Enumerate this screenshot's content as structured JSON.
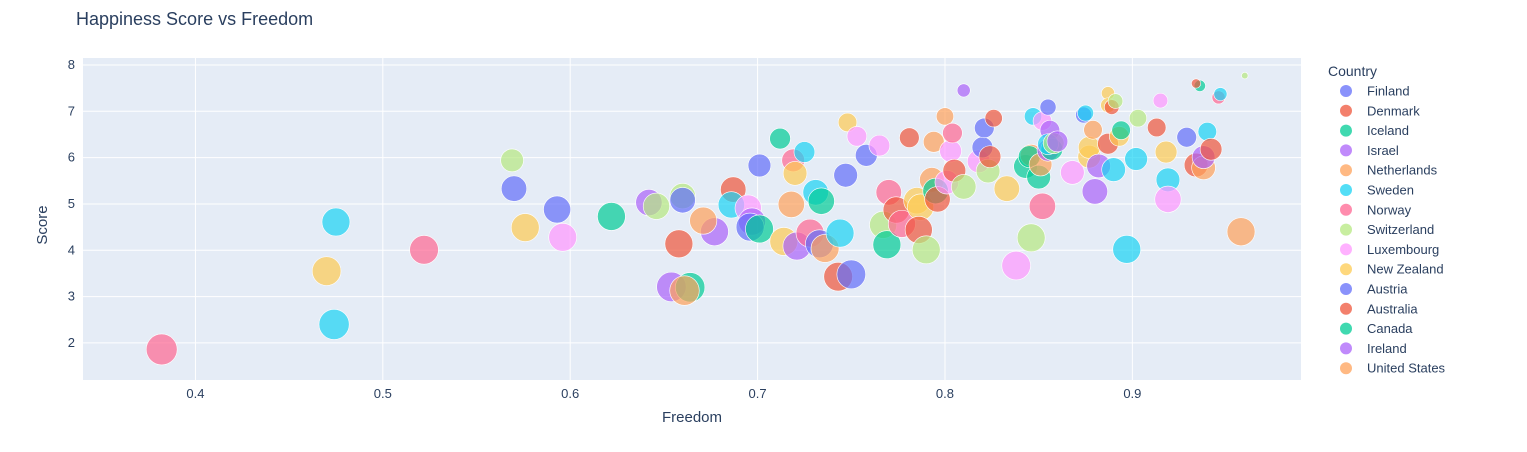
{
  "chart_data": {
    "type": "scatter",
    "title": "Happiness Score vs Freedom",
    "xlabel": "Freedom",
    "ylabel": "Score",
    "xlim": [
      0.34,
      0.99
    ],
    "ylim": [
      1.2,
      8.15
    ],
    "x_ticks": [
      0.4,
      0.5,
      0.6,
      0.7,
      0.8,
      0.9
    ],
    "x_tick_labels": [
      "0.4",
      "0.5",
      "0.6",
      "0.7",
      "0.8",
      "0.9"
    ],
    "y_ticks": [
      2,
      3,
      4,
      5,
      6,
      7,
      8
    ],
    "y_tick_labels": [
      "2",
      "3",
      "4",
      "5",
      "6",
      "7",
      "8"
    ],
    "grid": true,
    "legend_title": "Country",
    "legend_position": "right",
    "size_note": "bubble size encodes rank (larger = lower score)",
    "series": [
      {
        "name": "Finland",
        "color": "#636efa"
      },
      {
        "name": "Denmark",
        "color": "#EF553B"
      },
      {
        "name": "Iceland",
        "color": "#00cc96"
      },
      {
        "name": "Israel",
        "color": "#ab63fa"
      },
      {
        "name": "Netherlands",
        "color": "#FFA15A"
      },
      {
        "name": "Sweden",
        "color": "#19d3f3"
      },
      {
        "name": "Norway",
        "color": "#FF6692"
      },
      {
        "name": "Switzerland",
        "color": "#B6E880"
      },
      {
        "name": "Luxembourg",
        "color": "#FF97FF"
      },
      {
        "name": "New Zealand",
        "color": "#FECB52"
      },
      {
        "name": "Austria",
        "color": "#636efa"
      },
      {
        "name": "Australia",
        "color": "#EF553B"
      },
      {
        "name": "Canada",
        "color": "#00cc96"
      },
      {
        "name": "Ireland",
        "color": "#ab63fa"
      },
      {
        "name": "United States",
        "color": "#FFA15A"
      }
    ],
    "palette": [
      "#636efa",
      "#EF553B",
      "#00cc96",
      "#ab63fa",
      "#FFA15A",
      "#19d3f3",
      "#FF6692",
      "#B6E880",
      "#FF97FF",
      "#FECB52"
    ],
    "points": [
      [
        0.382,
        1.86,
        6,
        22
      ],
      [
        0.474,
        2.4,
        5,
        21
      ],
      [
        0.47,
        3.55,
        9,
        19
      ],
      [
        0.475,
        4.61,
        5,
        18
      ],
      [
        0.522,
        4.01,
        6,
        19
      ],
      [
        0.576,
        4.49,
        9,
        18
      ],
      [
        0.57,
        5.33,
        0,
        15
      ],
      [
        0.569,
        5.94,
        7,
        12
      ],
      [
        0.593,
        4.88,
        0,
        17
      ],
      [
        0.596,
        4.28,
        8,
        18
      ],
      [
        0.622,
        4.73,
        2,
        18
      ],
      [
        0.642,
        5.03,
        3,
        16
      ],
      [
        0.646,
        4.95,
        7,
        16
      ],
      [
        0.654,
        3.21,
        3,
        20
      ],
      [
        0.66,
        5.17,
        7,
        15
      ],
      [
        0.66,
        5.08,
        0,
        15
      ],
      [
        0.658,
        4.14,
        1,
        18
      ],
      [
        0.664,
        3.2,
        2,
        20
      ],
      [
        0.661,
        3.13,
        4,
        20
      ],
      [
        0.677,
        4.4,
        3,
        18
      ],
      [
        0.671,
        4.64,
        4,
        17
      ],
      [
        0.687,
        5.31,
        1,
        15
      ],
      [
        0.701,
        5.83,
        0,
        12
      ],
      [
        0.686,
        4.98,
        5,
        16
      ],
      [
        0.695,
        4.91,
        8,
        16
      ],
      [
        0.697,
        4.62,
        3,
        17
      ],
      [
        0.696,
        4.5,
        0,
        18
      ],
      [
        0.701,
        4.46,
        2,
        18
      ],
      [
        0.712,
        6.41,
        2,
        10
      ],
      [
        0.719,
        5.94,
        6,
        12
      ],
      [
        0.72,
        5.66,
        9,
        13
      ],
      [
        0.718,
        4.99,
        4,
        16
      ],
      [
        0.714,
        4.19,
        9,
        18
      ],
      [
        0.721,
        4.09,
        3,
        18
      ],
      [
        0.728,
        4.37,
        6,
        18
      ],
      [
        0.725,
        6.12,
        5,
        10
      ],
      [
        0.731,
        5.25,
        5,
        15
      ],
      [
        0.734,
        5.06,
        2,
        16
      ],
      [
        0.733,
        4.14,
        0,
        18
      ],
      [
        0.736,
        4.04,
        4,
        18
      ],
      [
        0.743,
        3.43,
        1,
        19
      ],
      [
        0.744,
        4.37,
        5,
        18
      ],
      [
        0.75,
        3.48,
        0,
        19
      ],
      [
        0.747,
        5.62,
        0,
        13
      ],
      [
        0.748,
        6.76,
        9,
        8
      ],
      [
        0.753,
        6.46,
        8,
        9
      ],
      [
        0.758,
        6.05,
        0,
        11
      ],
      [
        0.765,
        6.26,
        8,
        10
      ],
      [
        0.767,
        4.55,
        7,
        17
      ],
      [
        0.769,
        4.12,
        2,
        18
      ],
      [
        0.77,
        5.25,
        6,
        15
      ],
      [
        0.774,
        4.87,
        1,
        16
      ],
      [
        0.777,
        4.57,
        6,
        17
      ],
      [
        0.781,
        6.43,
        1,
        9
      ],
      [
        0.785,
        5.07,
        9,
        16
      ],
      [
        0.787,
        4.93,
        9,
        16
      ],
      [
        0.786,
        4.44,
        1,
        17
      ],
      [
        0.79,
        4.01,
        7,
        18
      ],
      [
        0.793,
        5.52,
        4,
        14
      ],
      [
        0.794,
        6.34,
        4,
        10
      ],
      [
        0.795,
        5.28,
        2,
        15
      ],
      [
        0.796,
        5.1,
        1,
        15
      ],
      [
        0.8,
        6.89,
        4,
        7
      ],
      [
        0.801,
        5.47,
        8,
        13
      ],
      [
        0.803,
        6.14,
        8,
        11
      ],
      [
        0.805,
        5.72,
        1,
        12
      ],
      [
        0.804,
        6.53,
        6,
        9
      ],
      [
        0.81,
        5.37,
        7,
        14
      ],
      [
        0.81,
        7.45,
        3,
        4
      ],
      [
        0.818,
        5.92,
        8,
        12
      ],
      [
        0.82,
        6.22,
        0,
        10
      ],
      [
        0.821,
        6.64,
        0,
        9
      ],
      [
        0.823,
        5.71,
        7,
        13
      ],
      [
        0.824,
        6.02,
        1,
        11
      ],
      [
        0.826,
        6.85,
        1,
        7
      ],
      [
        0.833,
        5.33,
        9,
        15
      ],
      [
        0.838,
        3.67,
        8,
        19
      ],
      [
        0.843,
        5.81,
        2,
        13
      ],
      [
        0.846,
        6.05,
        4,
        11
      ],
      [
        0.845,
        6.02,
        2,
        11
      ],
      [
        0.846,
        4.27,
        7,
        18
      ],
      [
        0.847,
        6.89,
        5,
        7
      ],
      [
        0.85,
        5.58,
        2,
        13
      ],
      [
        0.851,
        5.85,
        4,
        12
      ],
      [
        0.852,
        4.95,
        6,
        16
      ],
      [
        0.852,
        6.79,
        8,
        8
      ],
      [
        0.855,
        6.16,
        3,
        11
      ],
      [
        0.855,
        7.09,
        0,
        6
      ],
      [
        0.856,
        6.59,
        3,
        9
      ],
      [
        0.857,
        6.18,
        2,
        11
      ],
      [
        0.855,
        6.29,
        5,
        10
      ],
      [
        0.858,
        6.31,
        7,
        10
      ],
      [
        0.86,
        6.35,
        3,
        10
      ],
      [
        0.868,
        5.68,
        8,
        13
      ],
      [
        0.874,
        6.92,
        0,
        6
      ],
      [
        0.875,
        6.96,
        5,
        6
      ],
      [
        0.877,
        6.02,
        9,
        12
      ],
      [
        0.877,
        6.22,
        9,
        11
      ],
      [
        0.879,
        6.6,
        4,
        8
      ],
      [
        0.88,
        5.27,
        3,
        15
      ],
      [
        0.882,
        5.82,
        3,
        13
      ],
      [
        0.887,
        6.3,
        1,
        10
      ],
      [
        0.887,
        7.39,
        9,
        4
      ],
      [
        0.887,
        7.13,
        9,
        5
      ],
      [
        0.889,
        7.09,
        1,
        5
      ],
      [
        0.891,
        7.22,
        7,
        5
      ],
      [
        0.89,
        5.74,
        5,
        13
      ],
      [
        0.893,
        6.46,
        9,
        9
      ],
      [
        0.894,
        6.59,
        2,
        8
      ],
      [
        0.897,
        4.02,
        5,
        18
      ],
      [
        0.902,
        5.97,
        5,
        12
      ],
      [
        0.903,
        6.85,
        7,
        7
      ],
      [
        0.913,
        6.65,
        1,
        8
      ],
      [
        0.915,
        7.23,
        8,
        5
      ],
      [
        0.918,
        6.12,
        9,
        11
      ],
      [
        0.919,
        5.52,
        5,
        13
      ],
      [
        0.919,
        5.1,
        8,
        16
      ],
      [
        0.929,
        6.44,
        0,
        9
      ],
      [
        0.934,
        5.84,
        1,
        13
      ],
      [
        0.936,
        7.55,
        2,
        3
      ],
      [
        0.934,
        7.6,
        1,
        2
      ],
      [
        0.938,
        5.78,
        4,
        13
      ],
      [
        0.938,
        6.01,
        3,
        12
      ],
      [
        0.94,
        6.56,
        5,
        8
      ],
      [
        0.942,
        6.18,
        1,
        11
      ],
      [
        0.946,
        7.3,
        6,
        4
      ],
      [
        0.947,
        7.37,
        5,
        4
      ],
      [
        0.958,
        4.4,
        4,
        18
      ],
      [
        0.96,
        7.77,
        7,
        1
      ]
    ]
  }
}
